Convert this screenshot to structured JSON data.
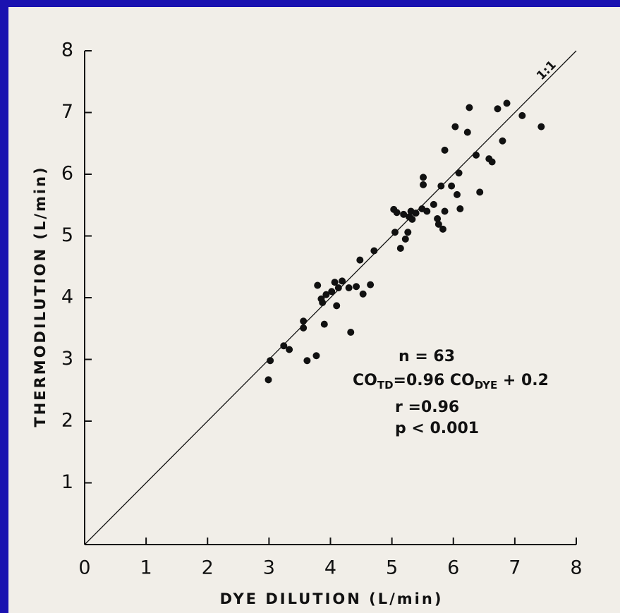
{
  "chart_data": {
    "type": "scatter",
    "x_label": "DYE DILUTION (L/min)",
    "y_label": "THERMODILUTION (L/min)",
    "xlim": [
      0,
      8
    ],
    "ylim": [
      0,
      8
    ],
    "xticks": [
      0,
      1,
      2,
      3,
      4,
      5,
      6,
      7,
      8
    ],
    "yticks": [
      1,
      2,
      3,
      4,
      5,
      6,
      7,
      8
    ],
    "color": "#111111",
    "reference_line": {
      "label": "1:1"
    },
    "annotations": {
      "n": "n = 63",
      "equation": [
        {
          "text": "CO"
        },
        {
          "text": "TD",
          "sub": true
        },
        {
          "text": "=0.96 CO"
        },
        {
          "text": "DYE",
          "sub": true
        },
        {
          "text": " + 0.2"
        }
      ],
      "r": "r =0.96",
      "p": "p < 0.001"
    },
    "x": [
      2.99,
      3.02,
      3.24,
      3.33,
      3.62,
      3.77,
      3.56,
      3.56,
      3.79,
      3.85,
      3.87,
      3.93,
      3.9,
      4.02,
      4.07,
      4.13,
      4.1,
      4.19,
      4.33,
      4.3,
      4.42,
      4.53,
      4.65,
      4.48,
      4.71,
      5.03,
      5.05,
      5.08,
      5.14,
      5.19,
      5.22,
      5.26,
      5.28,
      5.31,
      5.33,
      5.39,
      5.49,
      5.51,
      5.51,
      5.57,
      5.68,
      5.74,
      5.76,
      5.8,
      5.83,
      5.86,
      5.86,
      5.97,
      6.03,
      6.06,
      6.09,
      6.11,
      6.23,
      6.26,
      6.37,
      6.43,
      6.58,
      6.63,
      6.72,
      6.8,
      6.87,
      7.12,
      7.43
    ],
    "values": [
      2.67,
      2.98,
      3.22,
      3.16,
      2.98,
      3.06,
      3.62,
      3.51,
      4.2,
      3.98,
      3.92,
      4.05,
      3.57,
      4.1,
      4.25,
      4.16,
      3.87,
      4.27,
      3.44,
      4.16,
      4.18,
      4.06,
      4.21,
      4.61,
      4.76,
      5.43,
      5.06,
      5.38,
      4.8,
      5.35,
      4.95,
      5.06,
      5.31,
      5.4,
      5.27,
      5.37,
      5.44,
      5.95,
      5.83,
      5.4,
      5.51,
      5.28,
      5.19,
      5.81,
      5.11,
      5.4,
      6.39,
      5.81,
      6.77,
      5.67,
      6.02,
      5.44,
      6.68,
      7.08,
      6.31,
      5.71,
      6.25,
      6.2,
      7.06,
      6.54,
      7.15,
      6.95,
      6.77
    ]
  }
}
